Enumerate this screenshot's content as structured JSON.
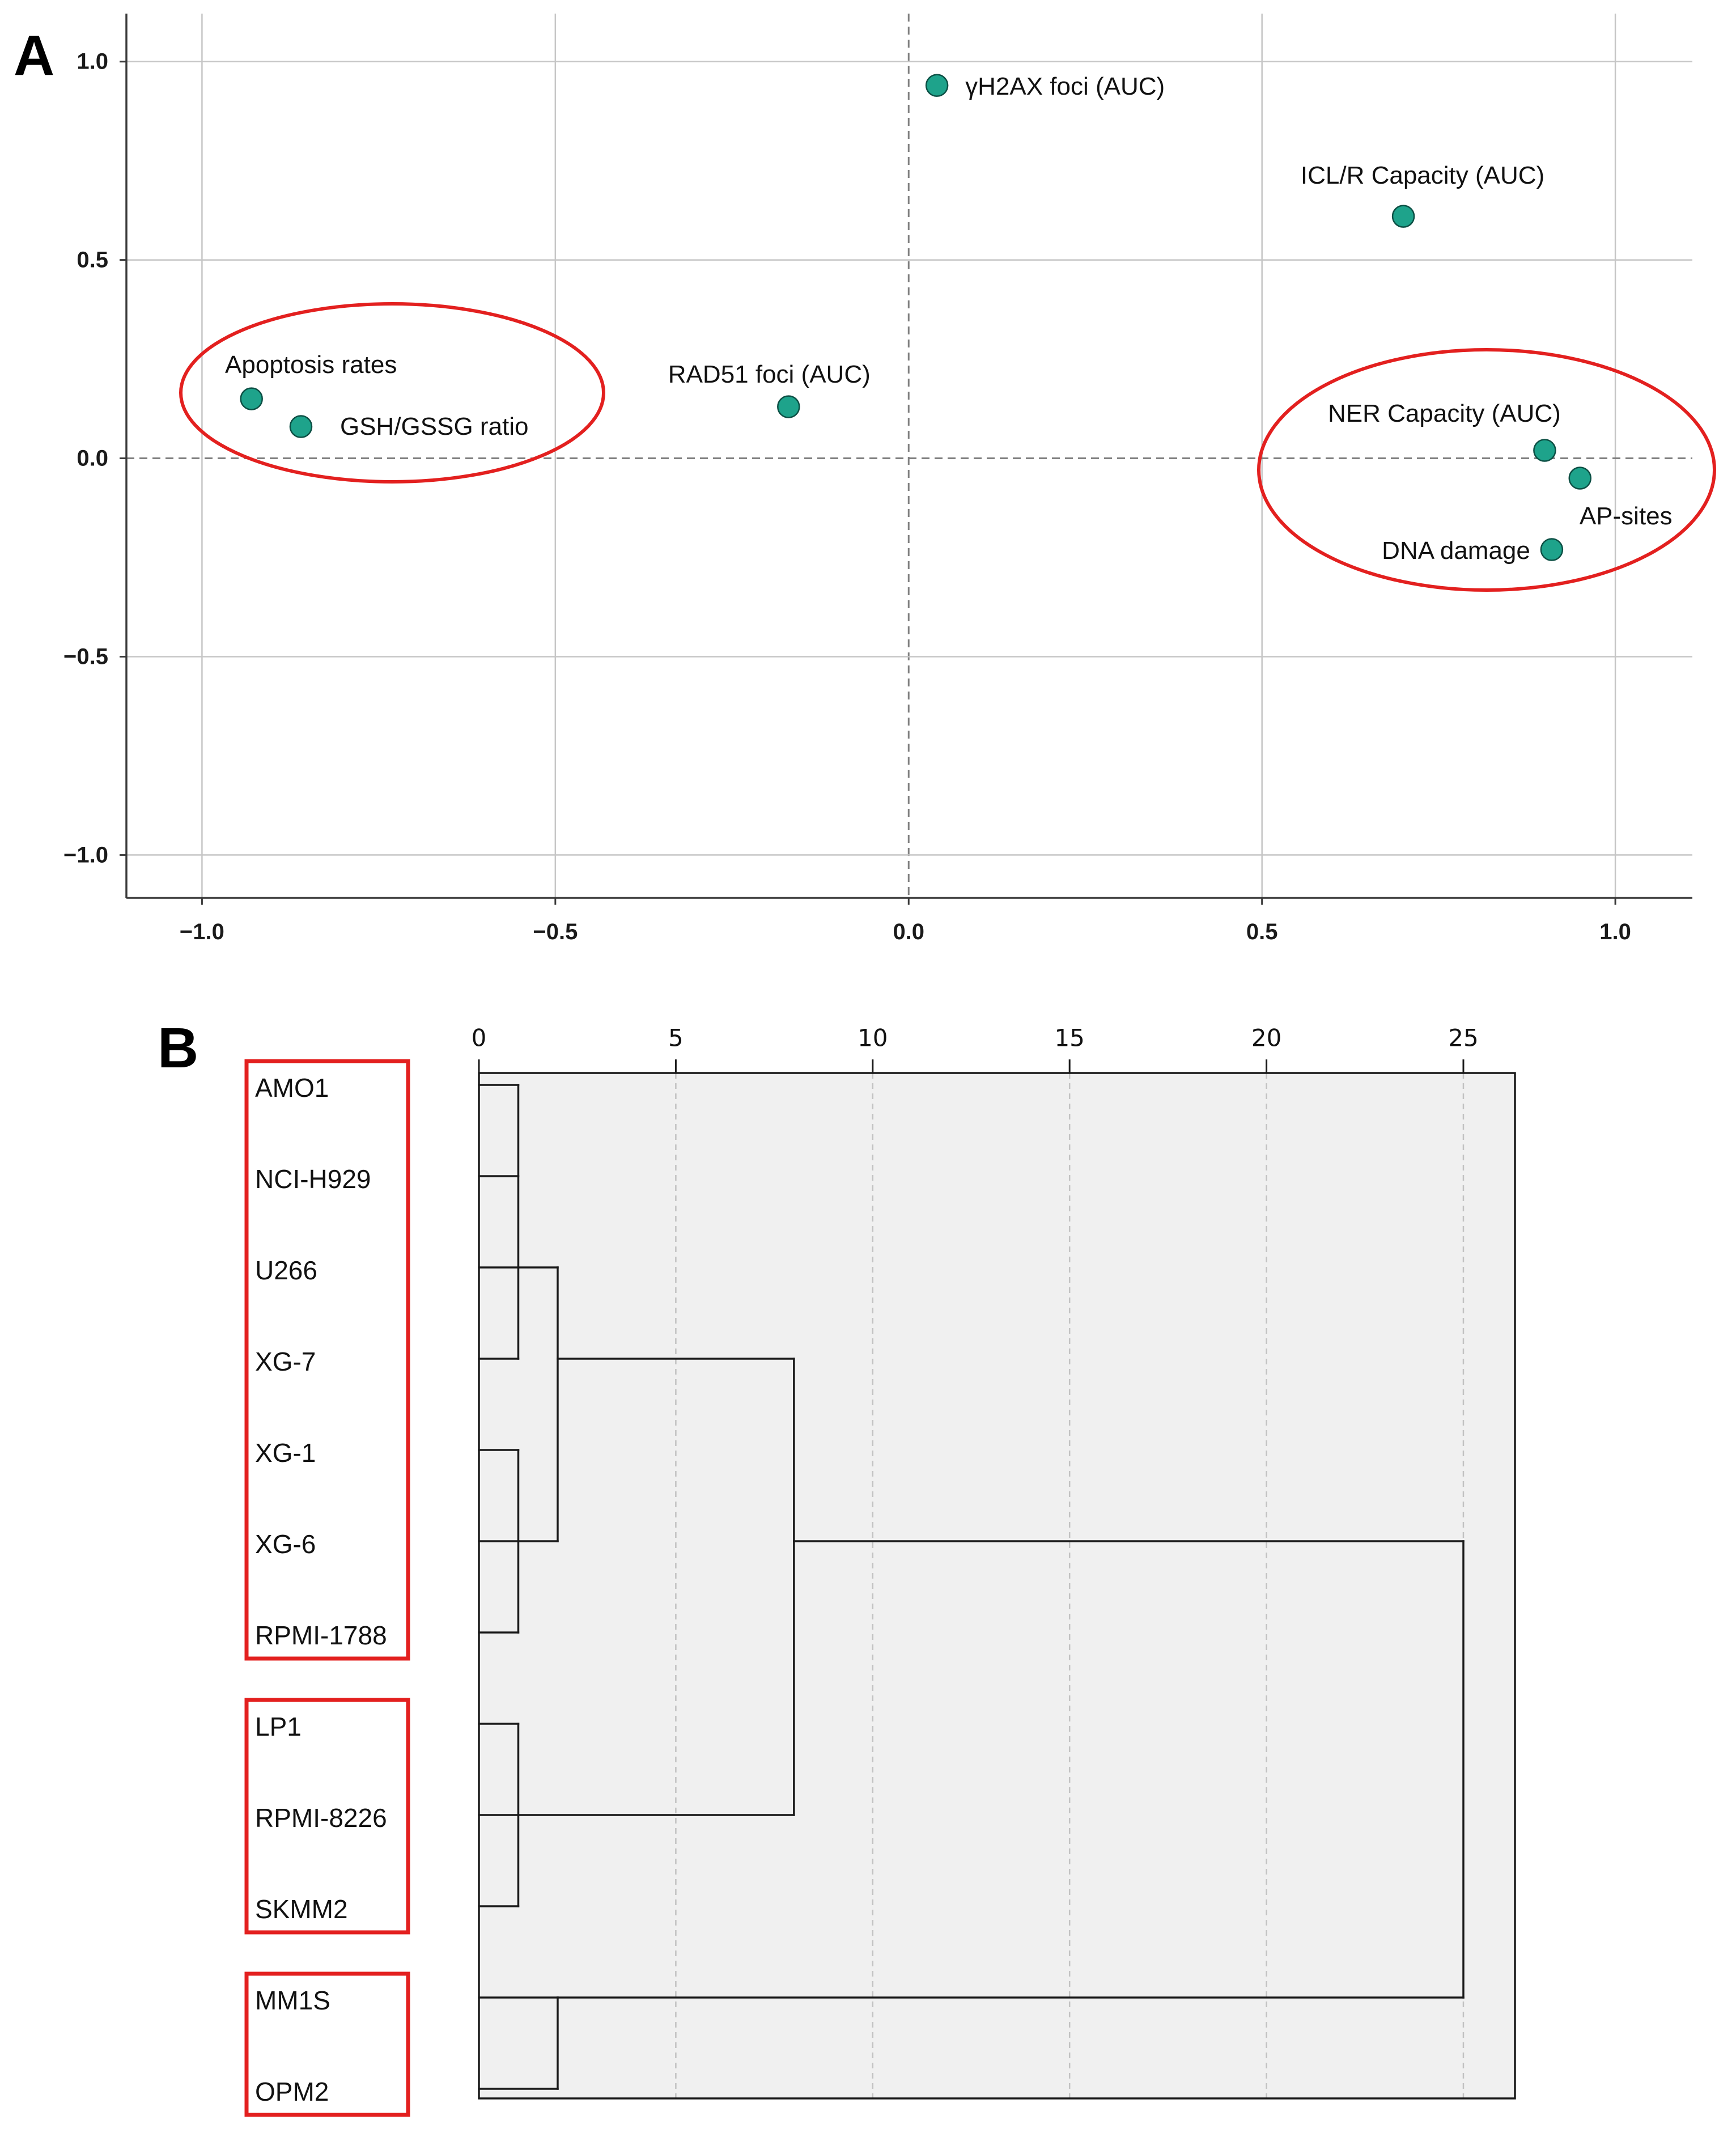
{
  "figure": {
    "panel_a_label": "A",
    "panel_b_label": "B"
  },
  "colors": {
    "point_fill": "#1ea38b",
    "point_stroke": "#0c4f44",
    "highlight_red": "#e3201f",
    "grid": "#c6c6c6",
    "zero_line": "#808080",
    "axis": "#3a3a3a",
    "dendro_box": "#f0f0f0",
    "dendro_line": "#1a1a1a",
    "dendro_grid": "#c2c2c2"
  },
  "chart_data": [
    {
      "type": "scatter",
      "title": "",
      "xlabel": "",
      "ylabel": "",
      "xlim": [
        -1.107,
        1.109
      ],
      "ylim": [
        -1.108,
        1.121
      ],
      "grid": true,
      "x_ticks": [
        -1.0,
        -0.5,
        0.0,
        0.5,
        1.0
      ],
      "x_tick_labels": [
        "−1.0",
        "−0.5",
        "0.0",
        "0.5",
        "1.0"
      ],
      "y_ticks": [
        1.0,
        0.5,
        0.0,
        -0.5,
        -1.0
      ],
      "y_tick_labels": [
        "1.0",
        "0.5",
        "0.0",
        "−0.5",
        "−1.0"
      ],
      "points": [
        {
          "label": "γH2AX foci (AUC)",
          "x": 0.04,
          "y": 0.94
        },
        {
          "label": "ICL/R Capacity (AUC)",
          "x": 0.7,
          "y": 0.61
        },
        {
          "label": "Apoptosis rates",
          "x": -0.93,
          "y": 0.15
        },
        {
          "label": "GSH/GSSG ratio",
          "x": -0.86,
          "y": 0.08
        },
        {
          "label": "RAD51 foci (AUC)",
          "x": -0.17,
          "y": 0.13
        },
        {
          "label": "NER Capacity (AUC)",
          "x": 0.9,
          "y": 0.02
        },
        {
          "label": "AP-sites",
          "x": 0.95,
          "y": -0.05
        },
        {
          "label": "DNA damage",
          "x": 0.91,
          "y": -0.23
        }
      ],
      "highlighted_groups": [
        [
          2,
          3
        ],
        [
          5,
          6,
          7
        ]
      ]
    },
    {
      "type": "dendrogram",
      "xlim": [
        0,
        26.31
      ],
      "axis_ticks": [
        0,
        5,
        10,
        15,
        20,
        25
      ],
      "axis_tick_labels": [
        "0",
        "5",
        "10",
        "15",
        "20",
        "25"
      ],
      "leaves": [
        "AMO1",
        "NCI-H929",
        "U266",
        "XG-7",
        "XG-1",
        "XG-6",
        "RPMI-1788",
        "LP1",
        "RPMI-8226",
        "SKMM2",
        "MM1S",
        "OPM2"
      ],
      "merges": [
        {
          "leaf_children": [
            0,
            1,
            2,
            3
          ],
          "merge_children": [],
          "distance": 1
        },
        {
          "leaf_children": [
            4,
            5,
            6
          ],
          "merge_children": [],
          "distance": 1
        },
        {
          "leaf_children": [],
          "merge_children": [
            0,
            1
          ],
          "distance": 2
        },
        {
          "leaf_children": [
            7,
            8,
            9
          ],
          "merge_children": [],
          "distance": 1
        },
        {
          "leaf_children": [],
          "merge_children": [
            2,
            3
          ],
          "distance": 8
        },
        {
          "leaf_children": [
            10,
            11
          ],
          "merge_children": [],
          "distance": 2
        },
        {
          "leaf_children": [],
          "merge_children": [
            4,
            5
          ],
          "distance": 25
        }
      ],
      "highlighted_groups": [
        [
          0,
          1,
          2,
          3,
          4,
          5,
          6
        ],
        [
          7,
          8,
          9
        ],
        [
          10,
          11
        ]
      ]
    }
  ]
}
